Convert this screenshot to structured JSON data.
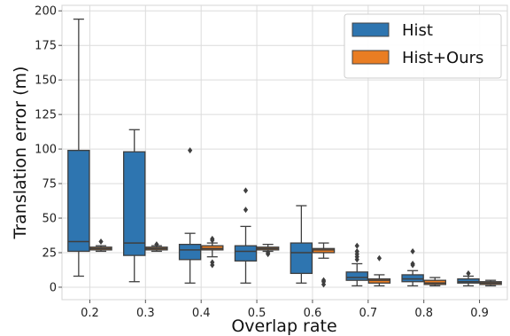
{
  "chart_data": {
    "type": "boxplot",
    "xlabel": "Overlap rate",
    "ylabel": "Translation error (m)",
    "ylim": [
      -9,
      204
    ],
    "yticks": [
      0,
      25,
      50,
      75,
      100,
      125,
      150,
      175,
      200
    ],
    "categories": [
      "0.2",
      "0.3",
      "0.4",
      "0.5",
      "0.6",
      "0.7",
      "0.8",
      "0.9"
    ],
    "grid": true,
    "legend": "top-right",
    "series": [
      {
        "name": "Hist",
        "color": "#2e75b0",
        "boxes": [
          {
            "min": 8,
            "q1": 26,
            "median": 33,
            "q3": 99,
            "max": 194,
            "outliers": []
          },
          {
            "min": 4,
            "q1": 23,
            "median": 32,
            "q3": 98,
            "max": 114,
            "outliers": []
          },
          {
            "min": 3,
            "q1": 20,
            "median": 27,
            "q3": 31,
            "max": 39,
            "outliers": [
              99
            ]
          },
          {
            "min": 3,
            "q1": 19,
            "median": 26,
            "q3": 30,
            "max": 44,
            "outliers": [
              56,
              70
            ]
          },
          {
            "min": 3,
            "q1": 10,
            "median": 25,
            "q3": 32,
            "max": 59,
            "outliers": []
          },
          {
            "min": 1,
            "q1": 5,
            "median": 7,
            "q3": 11,
            "max": 17,
            "outliers": [
              20,
              22,
              24,
              26,
              30
            ]
          },
          {
            "min": 1,
            "q1": 4,
            "median": 6,
            "q3": 9,
            "max": 12,
            "outliers": [
              16,
              17,
              26
            ]
          },
          {
            "min": 1,
            "q1": 3,
            "median": 4,
            "q3": 6,
            "max": 8,
            "outliers": [
              10
            ]
          }
        ]
      },
      {
        "name": "Hist+Ours",
        "color": "#e97d23",
        "boxes": [
          {
            "min": 26,
            "q1": 27,
            "median": 28,
            "q3": 29,
            "max": 30,
            "outliers": [
              33
            ]
          },
          {
            "min": 26,
            "q1": 27,
            "median": 28,
            "q3": 29,
            "max": 30,
            "outliers": [
              31
            ]
          },
          {
            "min": 22,
            "q1": 27,
            "median": 28,
            "q3": 30,
            "max": 32,
            "outliers": [
              16,
              18,
              34,
              35
            ]
          },
          {
            "min": 26,
            "q1": 27,
            "median": 28,
            "q3": 29,
            "max": 31,
            "outliers": [
              24,
              25
            ]
          },
          {
            "min": 21,
            "q1": 25,
            "median": 27,
            "q3": 28,
            "max": 32,
            "outliers": [
              2,
              4,
              5
            ]
          },
          {
            "min": 1,
            "q1": 3,
            "median": 5,
            "q3": 6,
            "max": 9,
            "outliers": [
              21
            ]
          },
          {
            "min": 1,
            "q1": 2,
            "median": 3,
            "q3": 5,
            "max": 7,
            "outliers": []
          },
          {
            "min": 1,
            "q1": 2,
            "median": 3,
            "q3": 4,
            "max": 5,
            "outliers": []
          }
        ]
      }
    ]
  }
}
